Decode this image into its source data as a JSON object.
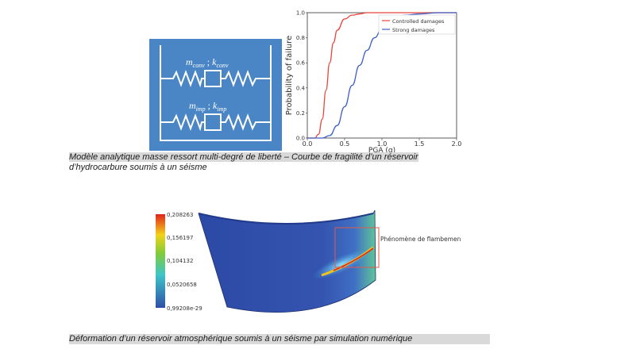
{
  "diagram": {
    "label_top_m": "m",
    "label_top_m_sub": "conv",
    "label_top_sep": " ; ",
    "label_top_k": "k",
    "label_top_k_sub": "conv",
    "label_bot_m": "m",
    "label_bot_m_sub": "imp",
    "label_bot_sep": " ; ",
    "label_bot_k": "k",
    "label_bot_k_sub": "imp",
    "colors": {
      "background": "#4a86c6",
      "lines": "#ffffff"
    }
  },
  "chart_data": {
    "type": "line",
    "xlabel": "PGA (g)",
    "ylabel": "Probability of failure",
    "xlim": [
      0,
      2.0
    ],
    "ylim": [
      0,
      1.0
    ],
    "xticks": [
      "0.0",
      "0.5",
      "1.0",
      "1.5",
      "2.0"
    ],
    "yticks": [
      "0.0",
      "0.2",
      "0.4",
      "0.6",
      "0.8",
      "1.0"
    ],
    "legend_position": "top-right",
    "series": [
      {
        "name": "Controlled damages",
        "color": "#e8453c",
        "x": [
          0,
          0.1,
          0.15,
          0.2,
          0.25,
          0.3,
          0.35,
          0.4,
          0.5,
          0.6,
          0.7,
          0.8,
          1.0,
          1.2,
          1.5,
          2.0
        ],
        "y": [
          0,
          0.0,
          0.03,
          0.15,
          0.38,
          0.6,
          0.76,
          0.86,
          0.95,
          0.98,
          0.99,
          1.0,
          1.0,
          1.0,
          1.0,
          1.0
        ]
      },
      {
        "name": "Strong damages",
        "color": "#3d5fc4",
        "x": [
          0,
          0.2,
          0.3,
          0.4,
          0.5,
          0.6,
          0.7,
          0.8,
          0.9,
          1.0,
          1.1,
          1.2,
          1.3,
          1.5,
          1.75,
          2.0
        ],
        "y": [
          0,
          0.0,
          0.02,
          0.1,
          0.25,
          0.42,
          0.58,
          0.7,
          0.8,
          0.87,
          0.93,
          0.96,
          0.98,
          0.99,
          1.0,
          1.0
        ]
      }
    ]
  },
  "caption1": {
    "line1": "Modèle analytique masse ressort multi-degré de liberté – Courbe de fragilité d’un réservoir",
    "line2": "d’hydrocarbure soumis à un séisme"
  },
  "simulation": {
    "legend_values": [
      "0,208263",
      "0,156197",
      "0,104132",
      "0,0520658",
      "0,99208e-29"
    ],
    "annotation": "Phénomène de flambement",
    "colors": {
      "annotation_box": "#e05a4a"
    }
  },
  "caption2": "Déformation d’un réservoir atmosphérique soumis à un séisme par simulation numérique"
}
